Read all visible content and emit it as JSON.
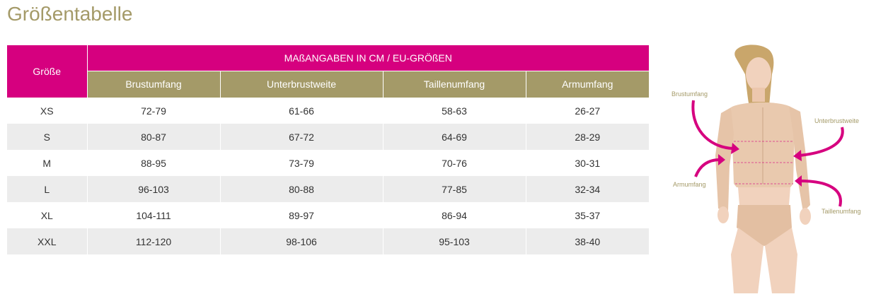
{
  "title": "Größentabelle",
  "table": {
    "size_header": "Größe",
    "group_header": "MAßANGABEN IN CM / EU-GRÖßEN",
    "columns": [
      "Brustumfang",
      "Unterbrustweite",
      "Taillenumfang",
      "Armumfang"
    ],
    "rows": [
      {
        "size": "XS",
        "brust": "72-79",
        "unter": "61-66",
        "taille": "58-63",
        "arm": "26-27"
      },
      {
        "size": "S",
        "brust": "80-87",
        "unter": "67-72",
        "taille": "64-69",
        "arm": "28-29"
      },
      {
        "size": "M",
        "brust": "88-95",
        "unter": "73-79",
        "taille": "70-76",
        "arm": "30-31"
      },
      {
        "size": "L",
        "brust": "96-103",
        "unter": "80-88",
        "taille": "77-85",
        "arm": "32-34"
      },
      {
        "size": "XL",
        "brust": "104-111",
        "unter": "89-97",
        "taille": "86-94",
        "arm": "35-37"
      },
      {
        "size": "XXL",
        "brust": "112-120",
        "unter": "98-106",
        "taille": "95-103",
        "arm": "38-40"
      }
    ]
  },
  "figure": {
    "labels": {
      "brust": "Brustumfang",
      "unter": "Unterbrustweite",
      "arm": "Armumfang",
      "taille": "Taillenumfang"
    }
  },
  "colors": {
    "accent_pink": "#d6007f",
    "accent_gold": "#a49a68",
    "row_alt": "#ececec"
  }
}
